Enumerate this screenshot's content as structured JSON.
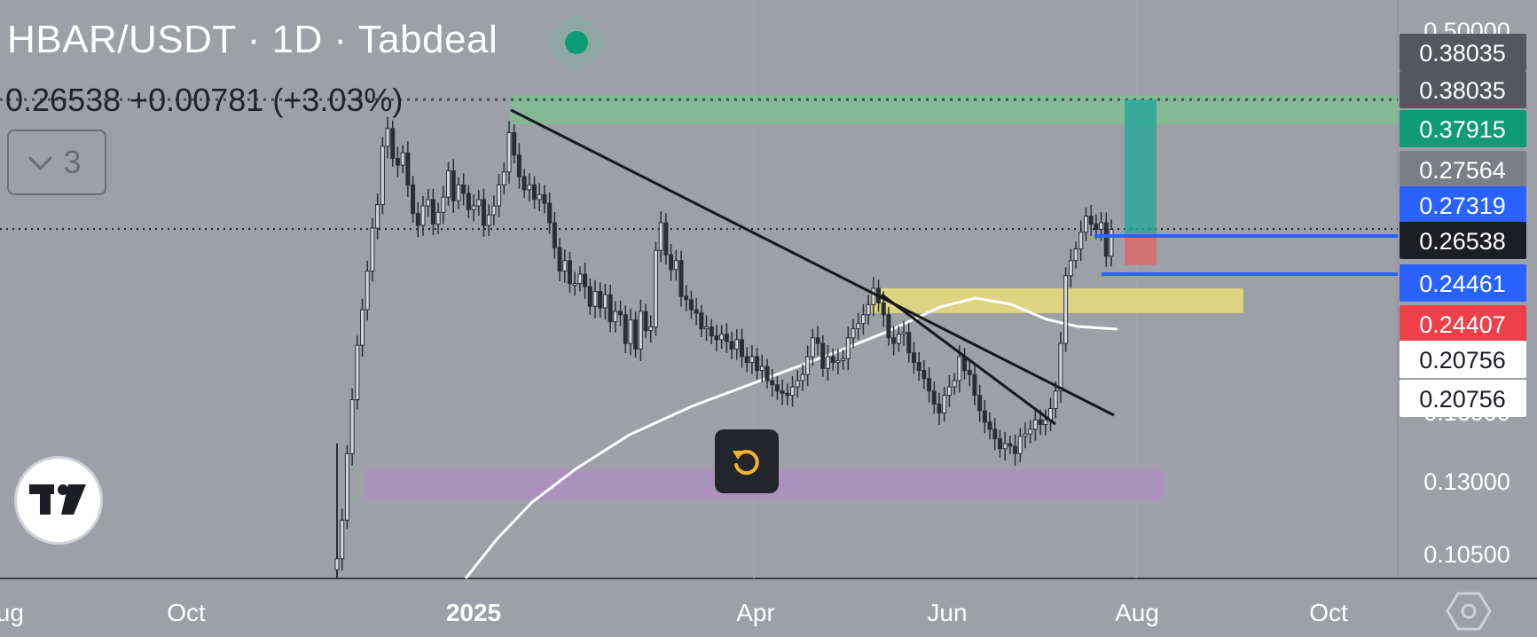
{
  "header": {
    "title": "HBAR/USDT · 1D · Tabdeal",
    "price_line": "0.26538  +0.00781 (+3.03%)",
    "collapse_count": "3"
  },
  "colors": {
    "background": "#9ea0a8",
    "candle": "#2b2e35",
    "trendline": "#16181d",
    "moving_average": "#ffffff",
    "zone_green": "#79c38e",
    "zone_yellow": "#e8dc7a",
    "zone_purple": "#b08cc4",
    "target_green": "#26a69a",
    "stop_red": "#ef5350",
    "level_blue": "#2962ff"
  },
  "icons": {
    "status": "status-dot-icon",
    "collapse": "chevron-down-icon",
    "logo": "tradingview-logo-icon",
    "reset": "reset-icon",
    "settings": "hexagon-settings-icon"
  },
  "chart_data": {
    "type": "candlestick",
    "title": "HBAR/USDT · 1D · Tabdeal",
    "x_ticks": [
      "Aug",
      "Oct",
      "2025",
      "Apr",
      "Jun",
      "Aug",
      "Oct"
    ],
    "y_ticks": [
      "0.50000",
      "0.16000",
      "0.13000",
      "0.10500"
    ],
    "price_labels": [
      {
        "value": "0.38035",
        "style": "gray-dark"
      },
      {
        "value": "0.38035",
        "style": "gray-dark"
      },
      {
        "value": "0.37915",
        "style": "green"
      },
      {
        "value": "0.27564",
        "style": "gray"
      },
      {
        "value": "0.27319",
        "style": "blue"
      },
      {
        "value": "0.26538",
        "style": "black"
      },
      {
        "value": "0.24461",
        "style": "blue"
      },
      {
        "value": "0.24407",
        "style": "red"
      },
      {
        "value": "0.20756",
        "style": "white"
      },
      {
        "value": "0.20756",
        "style": "white"
      }
    ],
    "last_price": 0.26538,
    "previous_high": 0.38035,
    "zones": [
      {
        "name": "resistance",
        "from": 0.355,
        "to": 0.385
      },
      {
        "name": "support-upper",
        "from": 0.21,
        "to": 0.225
      },
      {
        "name": "support-lower",
        "from": 0.125,
        "to": 0.136
      }
    ],
    "position": {
      "entry": 0.2449,
      "target": 0.38035,
      "stop": 0.2446
    },
    "closes": [
      0.106,
      0.118,
      0.142,
      0.165,
      0.192,
      0.212,
      0.236,
      0.266,
      0.284,
      0.334,
      0.351,
      0.323,
      0.317,
      0.328,
      0.3,
      0.277,
      0.268,
      0.283,
      0.288,
      0.269,
      0.278,
      0.29,
      0.312,
      0.287,
      0.3,
      0.293,
      0.28,
      0.283,
      0.288,
      0.268,
      0.276,
      0.283,
      0.3,
      0.311,
      0.347,
      0.326,
      0.307,
      0.296,
      0.3,
      0.288,
      0.292,
      0.285,
      0.27,
      0.252,
      0.236,
      0.243,
      0.228,
      0.228,
      0.234,
      0.226,
      0.214,
      0.223,
      0.213,
      0.221,
      0.205,
      0.211,
      0.209,
      0.193,
      0.206,
      0.19,
      0.211,
      0.2,
      0.202,
      0.25,
      0.27,
      0.247,
      0.237,
      0.243,
      0.22,
      0.218,
      0.212,
      0.21,
      0.201,
      0.202,
      0.197,
      0.195,
      0.198,
      0.194,
      0.19,
      0.195,
      0.186,
      0.183,
      0.186,
      0.179,
      0.181,
      0.174,
      0.172,
      0.169,
      0.168,
      0.167,
      0.171,
      0.174,
      0.177,
      0.186,
      0.196,
      0.193,
      0.18,
      0.186,
      0.183,
      0.184,
      0.185,
      0.196,
      0.201,
      0.204,
      0.209,
      0.215,
      0.225,
      0.216,
      0.209,
      0.196,
      0.193,
      0.198,
      0.199,
      0.188,
      0.183,
      0.179,
      0.175,
      0.169,
      0.163,
      0.159,
      0.167,
      0.171,
      0.174,
      0.186,
      0.179,
      0.177,
      0.167,
      0.16,
      0.155,
      0.152,
      0.148,
      0.144,
      0.146,
      0.145,
      0.142,
      0.149,
      0.15,
      0.152,
      0.156,
      0.154,
      0.156,
      0.161,
      0.169,
      0.193,
      0.233,
      0.243,
      0.251,
      0.263,
      0.275,
      0.269,
      0.265,
      0.27,
      0.246,
      0.265
    ]
  }
}
